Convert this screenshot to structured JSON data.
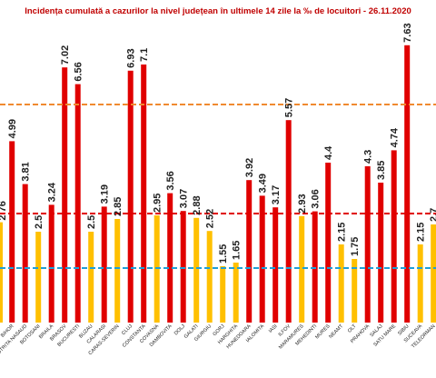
{
  "chart_data": {
    "type": "bar",
    "title": "Incidența cumulată a cazurilor la nivel județean în ultimele 14 zile la ‰ de locuitori - 26.11.2020",
    "xlabel": "",
    "ylabel": "",
    "ylim": [
      0,
      8.2
    ],
    "grid": false,
    "categories": [
      "BIHOR",
      "BISTRITA NASAUD",
      "BOTOSANI",
      "BRAILA",
      "BRASOV",
      "BUCURESTI",
      "BUZAU",
      "CALARASI",
      "CARAS-SEVERIN",
      "CLUJ",
      "CONSTANTA",
      "COVASNA",
      "DAMBOVITA",
      "DOLJ",
      "GALATI",
      "GIURGIU",
      "GORJ",
      "HARGHITA",
      "HUNEDOARA",
      "IALOMITA",
      "IASI",
      "ILFOV",
      "MARAMURES",
      "MEHEDINTI",
      "MURES",
      "NEAMT",
      "OLT",
      "PRAHOVA",
      "SALAJ",
      "SATU MARE",
      "SIBIU",
      "SUCEAVA",
      "TELEORMAN"
    ],
    "values": [
      4.99,
      3.81,
      2.5,
      3.24,
      7.02,
      6.56,
      2.5,
      3.19,
      2.85,
      6.93,
      7.1,
      2.95,
      3.56,
      3.07,
      2.88,
      2.52,
      1.55,
      1.65,
      3.92,
      3.49,
      3.17,
      5.57,
      2.93,
      3.06,
      4.4,
      2.15,
      1.75,
      4.3,
      3.85,
      4.74,
      7.63,
      2.15,
      2.7
    ],
    "value_labels": [
      "4.99",
      "3.81",
      "2.5",
      "3.24",
      "7.02",
      "6.56",
      "2.5",
      "3.19",
      "2.85",
      "6.93",
      "7.1",
      "2.95",
      "3.56",
      "3.07",
      "2.88",
      "2.52",
      "1.55",
      "1.65",
      "3.92",
      "3.49",
      "3.17",
      "5.57",
      "2.93",
      "3.06",
      "4.4",
      "2.15",
      "1.75",
      "4.3",
      "3.85",
      "4.74",
      "7.63",
      "2.15",
      "2.7"
    ],
    "leading_partial_label": "2.76",
    "reference_lines": [
      {
        "value": 6.0,
        "color": "#f08a30",
        "style": "dashed"
      },
      {
        "value": 3.0,
        "color": "#e00000",
        "style": "dashed"
      },
      {
        "value": 1.5,
        "color": "#1e9fd8",
        "style": "dashed"
      }
    ],
    "colors": {
      "high": "#e00000",
      "low": "#ffc000"
    },
    "threshold": 3.0
  }
}
